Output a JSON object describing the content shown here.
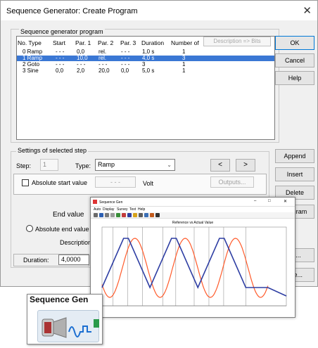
{
  "window": {
    "title": "Sequence Generator: Create Program",
    "close": "✕"
  },
  "program_group": {
    "label": "Sequence generator program",
    "headers": [
      "No. Type",
      "Start",
      "Par. 1",
      "Par. 2",
      "Par. 3",
      "Duration",
      "Number of"
    ],
    "description_button": "Description => Bits",
    "rows": [
      {
        "no_type": "0 Ramp",
        "start": "- - -",
        "par1": "0,0",
        "par2": "rel.",
        "par3": "- - -",
        "duration": "1,0 s",
        "number": "1"
      },
      {
        "no_type": "1 Ramp",
        "start": "- - -",
        "par1": "10,0",
        "par2": "rel.",
        "par3": "- - -",
        "duration": "4,0 s",
        "number": "3"
      },
      {
        "no_type": "2 Goto",
        "start": "- - -",
        "par1": "- - -",
        "par2": "- - -",
        "par3": "- - -",
        "duration": "3",
        "number": "1"
      },
      {
        "no_type": "3 Sine",
        "start": "0,0",
        "par1": "2,0",
        "par2": "20,0",
        "par3": "0,0",
        "duration": "5,0 s",
        "number": "1"
      }
    ]
  },
  "buttons": {
    "ok": "OK",
    "cancel": "Cancel",
    "help": "Help",
    "append": "Append",
    "insert": "Insert",
    "delete": "Delete",
    "program": "Program",
    "load": "ad...",
    "save": "ave..."
  },
  "settings_group": {
    "label": "Settings of selected step",
    "step_label": "Step:",
    "step_value": "1",
    "type_label": "Type:",
    "type_value": "Ramp",
    "prev": "<",
    "next": ">",
    "abs_start_label": "Absolute start value",
    "abs_start_value": "- - -",
    "volt": "Volt",
    "outputs": "Outputs...",
    "end_value_label": "End value",
    "abs_end_label": "Absolute end value",
    "description_label": "Description",
    "duration_label": "Duration:",
    "duration_value": "4,0000"
  },
  "plot_window": {
    "title": "Sequence Gen",
    "menu": [
      "Auto",
      "Display",
      "Survey",
      "Text",
      "Help"
    ],
    "plot_title": "Reference vs Actual Value",
    "series_colors": {
      "reference": "#2e3ea3",
      "actual": "#ff5a2a"
    }
  },
  "palette_tile": {
    "label": "Sequence Gen"
  },
  "colors": {
    "selection": "#3a77d4",
    "dialog_bg": "#f0f0f0"
  }
}
